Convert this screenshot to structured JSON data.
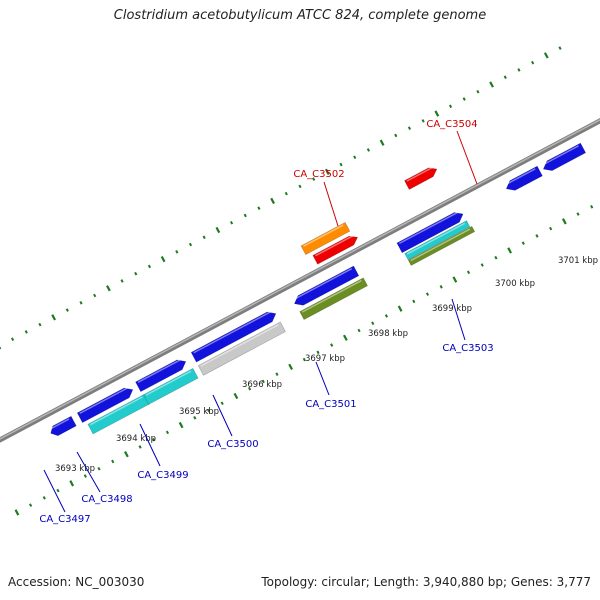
{
  "title": "Clostridium acetobutylicum ATCC 824, complete genome",
  "footer": {
    "accession": "Accession: NC_003030",
    "summary": "Topology: circular; Length: 3,940,880 bp; Genes: 3,777"
  },
  "colors": {
    "backbone": "#7d7d7d",
    "tick": "#1e7a1e",
    "label_forward": "#cc0000",
    "label_reverse": "#0000bb",
    "scale_text": "#222222"
  },
  "scale_labels": [
    "3693 kbp",
    "3694 kbp",
    "3695 kbp",
    "3696 kbp",
    "3697 kbp",
    "3698 kbp",
    "3699 kbp",
    "3700 kbp",
    "3701 kbp"
  ],
  "gene_labels": [
    {
      "text": "CA_C3497",
      "strand": "reverse"
    },
    {
      "text": "CA_C3498",
      "strand": "reverse"
    },
    {
      "text": "CA_C3499",
      "strand": "reverse"
    },
    {
      "text": "CA_C3500",
      "strand": "reverse"
    },
    {
      "text": "CA_C3501",
      "strand": "reverse"
    },
    {
      "text": "CA_C3502",
      "strand": "forward"
    },
    {
      "text": "CA_C3503",
      "strand": "reverse"
    },
    {
      "text": "CA_C3504",
      "strand": "forward"
    }
  ],
  "features": [
    {
      "name": "gene-a",
      "color": "#1212dd",
      "direction": "left"
    },
    {
      "name": "gene-b",
      "color": "#1212dd",
      "direction": "right"
    },
    {
      "name": "gene-c",
      "color": "#1212dd",
      "direction": "right"
    },
    {
      "name": "gene-d",
      "color": "#1212dd",
      "direction": "right"
    },
    {
      "name": "gene-e",
      "color": "#1212dd",
      "direction": "left"
    },
    {
      "name": "gene-f",
      "color": "#1212dd",
      "direction": "right"
    },
    {
      "name": "gene-g",
      "color": "#1212dd",
      "direction": "left"
    },
    {
      "name": "gene-h",
      "color": "#1212dd",
      "direction": "left"
    },
    {
      "name": "cds-cyan-1",
      "color": "#22cccc",
      "direction": "none"
    },
    {
      "name": "cds-cyan-2",
      "color": "#22cccc",
      "direction": "none"
    },
    {
      "name": "cds-gray",
      "color": "#c8c8c8",
      "direction": "none"
    },
    {
      "name": "cds-olive-1",
      "color": "#6b8e23",
      "direction": "none"
    },
    {
      "name": "cds-cyan-3",
      "color": "#22cccc",
      "direction": "none"
    },
    {
      "name": "cds-olive-2",
      "color": "#6b8e23",
      "direction": "none"
    },
    {
      "name": "gene-orange",
      "color": "#ff8c00",
      "direction": "none"
    },
    {
      "name": "gene-red-1",
      "color": "#ee0000",
      "direction": "right"
    },
    {
      "name": "gene-red-2",
      "color": "#ee0000",
      "direction": "right"
    }
  ]
}
